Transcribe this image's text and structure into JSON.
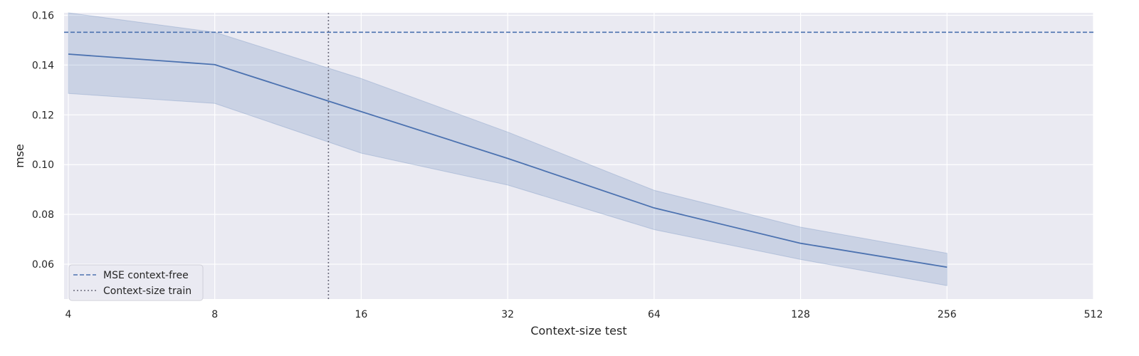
{
  "chart_data": {
    "type": "line",
    "title": "",
    "xlabel": "Context-size test",
    "ylabel": "mse",
    "x_scale": "log2",
    "x_ticks": [
      4,
      8,
      16,
      32,
      64,
      128,
      256,
      512
    ],
    "x_tick_labels": [
      "4",
      "8",
      "16",
      "32",
      "64",
      "128",
      "256",
      "512"
    ],
    "xlim": [
      3.92,
      512
    ],
    "y_ticks": [
      0.06,
      0.08,
      0.1,
      0.12,
      0.14,
      0.16
    ],
    "y_tick_labels": [
      "0.06",
      "0.08",
      "0.10",
      "0.12",
      "0.14",
      "0.16"
    ],
    "ylim": [
      0.046,
      0.161
    ],
    "grid": true,
    "series": [
      {
        "x": [
          4,
          8,
          16,
          32,
          64,
          128,
          256
        ],
        "y": [
          0.1444,
          0.1402,
          0.1213,
          0.1025,
          0.0826,
          0.0684,
          0.0588
        ],
        "band_upper": [
          0.161,
          0.1532,
          0.1346,
          0.1131,
          0.0897,
          0.0749,
          0.0644
        ],
        "band_lower": [
          0.1286,
          0.1246,
          0.1046,
          0.0918,
          0.0739,
          0.0619,
          0.0514
        ],
        "color": "#4c72b0"
      }
    ],
    "reference_lines": [
      {
        "orientation": "horizontal",
        "value": 0.1532,
        "style": "dashed",
        "label": "MSE context-free",
        "color": "#4c72b0"
      },
      {
        "orientation": "vertical",
        "value": 13.7,
        "style": "dotted",
        "label": "Context-size train",
        "color": "#6b6b7b"
      }
    ],
    "legend": {
      "position": "bottom-left",
      "entries": [
        "MSE context-free",
        "Context-size train"
      ]
    },
    "colors": {
      "plot_background": "#eaeaf2",
      "grid": "#ffffff",
      "line": "#4c72b0",
      "band": "#4c72b0"
    }
  }
}
